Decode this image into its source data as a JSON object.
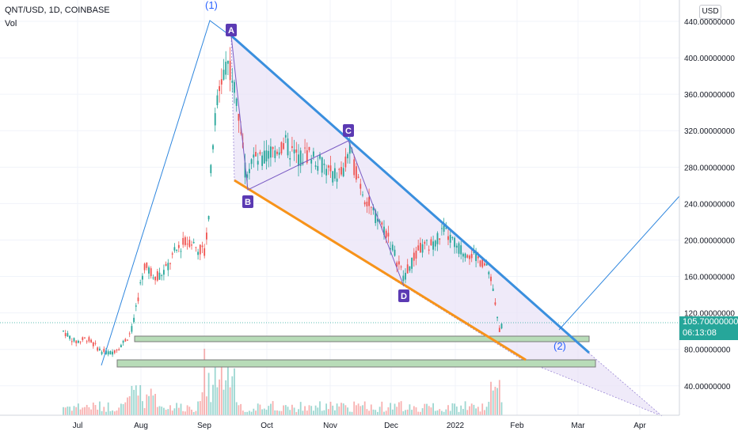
{
  "header": {
    "symbol": "QNT/USD, 1D, COINBASE",
    "volume_label": "Vol",
    "currency_button": "USD"
  },
  "price_badge": {
    "price": "105.70000000",
    "countdown": "06:13:08"
  },
  "colors": {
    "up": "#26a69a",
    "down": "#ef5350",
    "channel_top": "#3a8fde",
    "channel_bottom": "#f7931a",
    "fill": "#e9e3f7",
    "point_badge": "#5b3ab3"
  },
  "chart_data": {
    "type": "candlestick",
    "y_ticks": [
      "440.00000000",
      "400.00000000",
      "360.00000000",
      "320.00000000",
      "280.00000000",
      "240.00000000",
      "200.00000000",
      "160.00000000",
      "120.00000000",
      "80.00000000",
      "40.00000000"
    ],
    "y_tick_values": [
      440,
      400,
      360,
      320,
      280,
      240,
      200,
      160,
      120,
      80,
      40
    ],
    "x_ticks": [
      "Jul",
      "Aug",
      "Sep",
      "Oct",
      "Nov",
      "Dec",
      "2022",
      "Feb",
      "Mar",
      "Apr"
    ],
    "wave_labels": [
      "(1)",
      "(2)"
    ],
    "points": [
      {
        "label": "A",
        "price": 415
      },
      {
        "label": "B",
        "price": 258
      },
      {
        "label": "C",
        "price": 306
      },
      {
        "label": "D",
        "price": 150
      }
    ],
    "current_price": 105.7
  }
}
